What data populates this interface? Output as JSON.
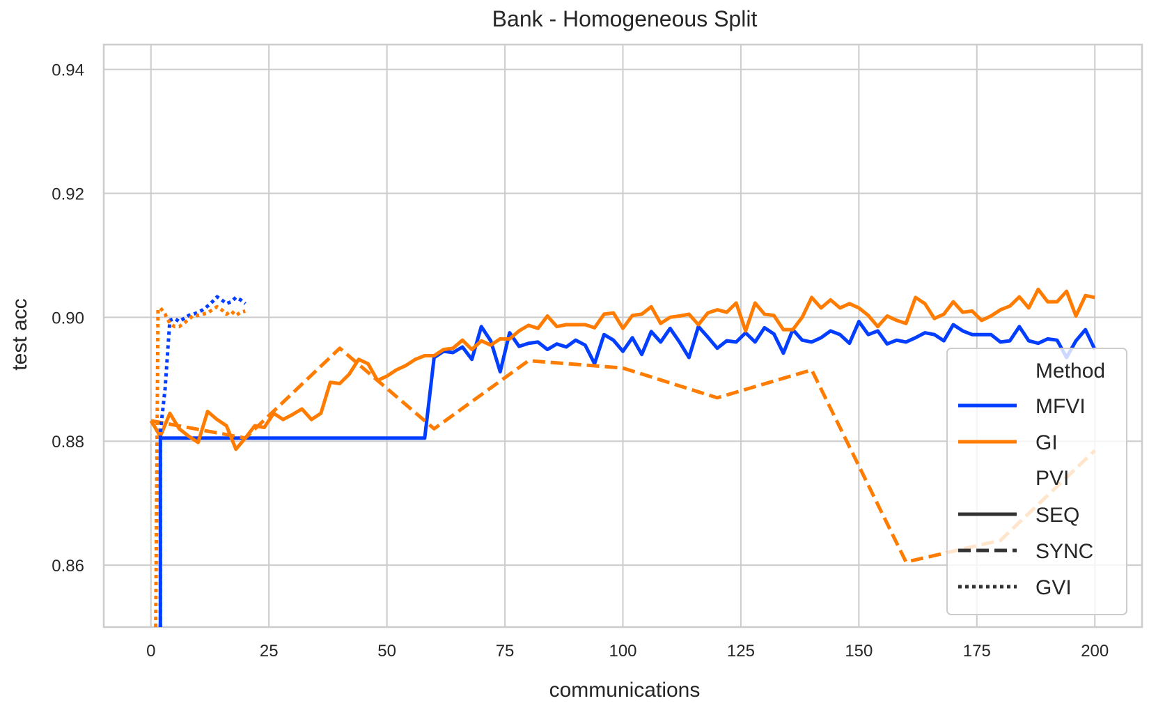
{
  "chart_data": {
    "type": "line",
    "title": "Bank - Homogeneous Split",
    "xlabel": "communications",
    "ylabel": "test acc",
    "xlim": [
      -10,
      210
    ],
    "ylim": [
      0.85,
      0.944
    ],
    "xticks": [
      0,
      25,
      50,
      75,
      100,
      125,
      150,
      175,
      200
    ],
    "yticks": [
      0.86,
      0.88,
      0.9,
      0.92,
      0.94
    ],
    "ytick_labels": [
      "0.86",
      "0.88",
      "0.90",
      "0.92",
      "0.94"
    ],
    "grid": true,
    "legend_position": "lower-right",
    "legend": {
      "method_title": "Method",
      "methods": [
        {
          "name": "MFVI",
          "color": "#023eff"
        },
        {
          "name": "GI",
          "color": "#ff7c00"
        }
      ],
      "pvi_title": "PVI",
      "pvi_styles": [
        {
          "name": "SEQ",
          "dash": "solid"
        },
        {
          "name": "SYNC",
          "dash": "dashed"
        },
        {
          "name": "GVI",
          "dash": "dotted"
        }
      ]
    },
    "series": [
      {
        "method": "MFVI",
        "pvi": "SEQ",
        "color": "#023eff",
        "dash": "solid",
        "x": [
          2,
          2,
          58,
          60,
          62,
          64,
          66,
          68,
          70,
          72,
          74,
          76,
          78,
          80,
          82,
          84,
          86,
          88,
          90,
          92,
          94,
          96,
          98,
          100,
          102,
          104,
          106,
          108,
          110,
          112,
          114,
          116,
          118,
          120,
          122,
          124,
          126,
          128,
          130,
          132,
          134,
          136,
          138,
          140,
          142,
          144,
          146,
          148,
          150,
          152,
          154,
          156,
          158,
          160,
          162,
          164,
          166,
          168,
          170,
          172,
          174,
          176,
          178,
          180,
          182,
          184,
          186,
          188,
          190,
          192,
          194,
          196,
          198,
          200
        ],
        "y": [
          0.85,
          0.8805,
          0.8805,
          0.8935,
          0.8945,
          0.8943,
          0.8952,
          0.8932,
          0.8985,
          0.8962,
          0.8912,
          0.8975,
          0.8953,
          0.8958,
          0.896,
          0.8948,
          0.8957,
          0.8952,
          0.8963,
          0.8955,
          0.8925,
          0.8972,
          0.8963,
          0.8945,
          0.8967,
          0.894,
          0.8977,
          0.896,
          0.8982,
          0.896,
          0.8935,
          0.8985,
          0.8968,
          0.895,
          0.8962,
          0.896,
          0.8975,
          0.896,
          0.8983,
          0.8973,
          0.8942,
          0.898,
          0.8963,
          0.896,
          0.8967,
          0.8978,
          0.8972,
          0.8958,
          0.8993,
          0.8972,
          0.8978,
          0.8957,
          0.8963,
          0.896,
          0.8967,
          0.8975,
          0.8972,
          0.8962,
          0.8988,
          0.8978,
          0.8972,
          0.8972,
          0.8972,
          0.896,
          0.8962,
          0.8985,
          0.8962,
          0.8958,
          0.8965,
          0.8963,
          0.8935,
          0.8962,
          0.898,
          0.8948
        ]
      },
      {
        "method": "GI",
        "pvi": "SEQ",
        "color": "#ff7c00",
        "dash": "solid",
        "x": [
          0,
          2,
          4,
          6,
          8,
          10,
          12,
          14,
          16,
          18,
          20,
          22,
          24,
          26,
          28,
          30,
          32,
          34,
          36,
          38,
          40,
          42,
          44,
          46,
          48,
          50,
          52,
          54,
          56,
          58,
          60,
          62,
          64,
          66,
          68,
          70,
          72,
          74,
          76,
          78,
          80,
          82,
          84,
          86,
          88,
          90,
          92,
          94,
          96,
          98,
          100,
          102,
          104,
          106,
          108,
          110,
          112,
          114,
          116,
          118,
          120,
          122,
          124,
          126,
          128,
          130,
          132,
          134,
          136,
          138,
          140,
          142,
          144,
          146,
          148,
          150,
          152,
          154,
          156,
          158,
          160,
          162,
          164,
          166,
          168,
          170,
          172,
          174,
          176,
          178,
          180,
          182,
          184,
          186,
          188,
          190,
          192,
          194,
          196,
          198,
          200
        ],
        "y": [
          0.8833,
          0.8808,
          0.8845,
          0.882,
          0.8808,
          0.8798,
          0.8848,
          0.8835,
          0.8825,
          0.8787,
          0.8805,
          0.8825,
          0.8822,
          0.8845,
          0.8835,
          0.8843,
          0.8852,
          0.8835,
          0.8845,
          0.8895,
          0.8893,
          0.8908,
          0.8932,
          0.8925,
          0.8898,
          0.8905,
          0.8915,
          0.8922,
          0.8932,
          0.8938,
          0.8938,
          0.8948,
          0.895,
          0.8963,
          0.8948,
          0.8962,
          0.8955,
          0.8965,
          0.8965,
          0.8978,
          0.8987,
          0.8982,
          0.9002,
          0.8985,
          0.8988,
          0.8988,
          0.8988,
          0.8983,
          0.9005,
          0.9007,
          0.8982,
          0.9003,
          0.9005,
          0.9017,
          0.899,
          0.9,
          0.9002,
          0.9005,
          0.8988,
          0.9007,
          0.9012,
          0.9008,
          0.9023,
          0.8978,
          0.9023,
          0.9005,
          0.9003,
          0.898,
          0.898,
          0.9,
          0.9032,
          0.9015,
          0.9028,
          0.9015,
          0.9022,
          0.9015,
          0.9003,
          0.8985,
          0.9002,
          0.8995,
          0.899,
          0.9032,
          0.9022,
          0.8998,
          0.9005,
          0.9025,
          0.9008,
          0.901,
          0.8995,
          0.9002,
          0.9012,
          0.9018,
          0.9033,
          0.9015,
          0.9045,
          0.9025,
          0.9025,
          0.9042,
          0.9002,
          0.9035,
          0.9032
        ]
      },
      {
        "method": "GI",
        "pvi": "SYNC",
        "color": "#ff7c00",
        "dash": "dashed",
        "x": [
          0,
          20,
          40,
          60,
          80,
          100,
          120,
          140,
          160,
          180,
          200
        ],
        "y": [
          0.8833,
          0.8805,
          0.895,
          0.882,
          0.893,
          0.8918,
          0.887,
          0.8915,
          0.8605,
          0.864,
          0.8785
        ]
      },
      {
        "method": "MFVI",
        "pvi": "GVI",
        "color": "#023eff",
        "dash": "dotted",
        "x": [
          2,
          2,
          3,
          4,
          5,
          6,
          7,
          8,
          9,
          10,
          11,
          12,
          13,
          14,
          15,
          16,
          17,
          18,
          19,
          20
        ],
        "y": [
          0.85,
          0.8815,
          0.8885,
          0.8995,
          0.8998,
          0.8993,
          0.8998,
          0.9003,
          0.9005,
          0.9008,
          0.9012,
          0.9018,
          0.9025,
          0.9033,
          0.9028,
          0.9022,
          0.9025,
          0.9032,
          0.9028,
          0.9022
        ]
      },
      {
        "method": "GI",
        "pvi": "GVI",
        "color": "#ff7c00",
        "dash": "dotted",
        "x": [
          1,
          1.5,
          2,
          3,
          4,
          5,
          6,
          7,
          8,
          9,
          10,
          11,
          12,
          13,
          14,
          15,
          16,
          17,
          18,
          19,
          20
        ],
        "y": [
          0.85,
          0.9012,
          0.9015,
          0.9005,
          0.899,
          0.8985,
          0.8985,
          0.899,
          0.8997,
          0.9003,
          0.9003,
          0.9005,
          0.9007,
          0.9012,
          0.9017,
          0.9012,
          0.9005,
          0.901,
          0.9003,
          0.9008,
          0.901
        ]
      }
    ]
  }
}
